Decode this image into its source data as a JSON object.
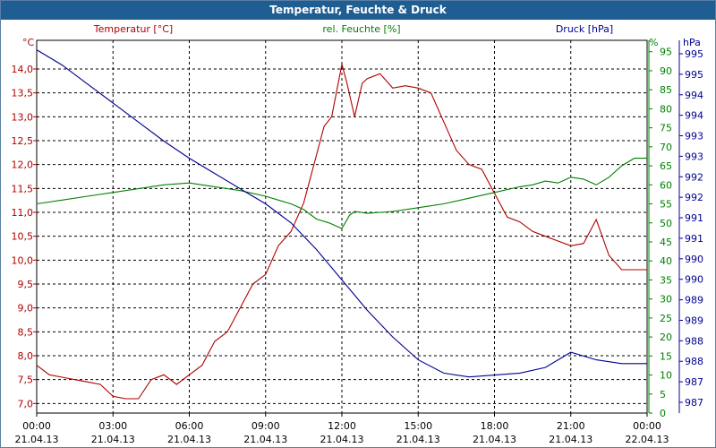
{
  "window": {
    "title": "Temperatur, Feuchte & Druck"
  },
  "chart_data": {
    "type": "line",
    "title": "Temperatur, Feuchte & Druck",
    "grid": true,
    "x_ticks": [
      {
        "time": "00:00",
        "date": "21.04.13"
      },
      {
        "time": "03:00",
        "date": "21.04.13"
      },
      {
        "time": "06:00",
        "date": "21.04.13"
      },
      {
        "time": "09:00",
        "date": "21.04.13"
      },
      {
        "time": "12:00",
        "date": "21.04.13"
      },
      {
        "time": "15:00",
        "date": "21.04.13"
      },
      {
        "time": "18:00",
        "date": "21.04.13"
      },
      {
        "time": "21:00",
        "date": "21.04.13"
      },
      {
        "time": "00:00",
        "date": "22.04.13"
      }
    ],
    "xlim": [
      0,
      24
    ],
    "axes": {
      "temperature": {
        "label": "Temperatur [°C]",
        "unit": "°C",
        "color": "#b00000",
        "ylim": [
          6.8,
          14.6
        ],
        "ticks": [
          "7,0",
          "7,5",
          "8,0",
          "8,5",
          "9,0",
          "9,5",
          "10,0",
          "10,5",
          "11,0",
          "11,5",
          "12,0",
          "12,5",
          "13,0",
          "13,5",
          "14,0"
        ]
      },
      "humidity": {
        "label": "rel. Feuchte [%]",
        "unit": "%",
        "color": "#008000",
        "ylim": [
          0,
          98
        ],
        "ticks": [
          "0",
          "5",
          "10",
          "15",
          "20",
          "25",
          "30",
          "35",
          "40",
          "45",
          "50",
          "55",
          "60",
          "65",
          "70",
          "75",
          "80",
          "85",
          "90",
          "95"
        ]
      },
      "pressure": {
        "label": "Druck [hPa]",
        "unit": "hPa",
        "color": "#000090",
        "ticks": [
          "987",
          "987",
          "988",
          "988",
          "989",
          "989",
          "990",
          "990",
          "991",
          "991",
          "992",
          "992",
          "993",
          "993",
          "994",
          "994",
          "995",
          "995"
        ]
      }
    },
    "series": [
      {
        "name": "Temperatur [°C]",
        "axis": "temperature",
        "color": "#b00000",
        "x": [
          0,
          0.5,
          1,
          1.5,
          2,
          2.5,
          3,
          3.5,
          4,
          4.5,
          5,
          5.5,
          6,
          6.5,
          7,
          7.5,
          8,
          8.5,
          9,
          9.5,
          10,
          10.5,
          11,
          11.3,
          11.6,
          12,
          12.2,
          12.5,
          12.8,
          13,
          13.5,
          14,
          14.5,
          15,
          15.5,
          16,
          16.5,
          17,
          17.5,
          18,
          18.5,
          19,
          19.5,
          20,
          20.5,
          21,
          21.5,
          22,
          22.5,
          23,
          23.5,
          24
        ],
        "y": [
          7.8,
          7.6,
          7.55,
          7.5,
          7.45,
          7.4,
          7.15,
          7.1,
          7.1,
          7.5,
          7.6,
          7.4,
          7.6,
          7.8,
          8.3,
          8.5,
          9.0,
          9.5,
          9.7,
          10.3,
          10.6,
          11.2,
          12.2,
          12.8,
          13.0,
          14.1,
          13.7,
          13.0,
          13.7,
          13.8,
          13.9,
          13.6,
          13.65,
          13.6,
          13.5,
          12.9,
          12.3,
          12.0,
          11.9,
          11.4,
          10.9,
          10.8,
          10.6,
          10.5,
          10.4,
          10.3,
          10.35,
          10.85,
          10.1,
          9.8,
          9.8,
          9.8
        ]
      },
      {
        "name": "rel. Feuchte [%]",
        "axis": "humidity",
        "color": "#008000",
        "x": [
          0,
          1,
          2,
          3,
          4,
          5,
          6,
          7,
          8,
          9,
          9.5,
          10,
          10.5,
          11,
          11.5,
          12,
          12.3,
          12.5,
          13,
          14,
          15,
          16,
          17,
          18,
          19,
          19.5,
          20,
          20.5,
          21,
          21.5,
          22,
          22.5,
          23,
          23.5,
          24
        ],
        "y": [
          55,
          56,
          57,
          58,
          59,
          60,
          60.5,
          59.5,
          58.5,
          57,
          56,
          55,
          53.5,
          51,
          50,
          48.5,
          52,
          53,
          52.5,
          53,
          54,
          55,
          56.5,
          58,
          59.5,
          60,
          61,
          60.5,
          62,
          61.5,
          60,
          62,
          65,
          67,
          67
        ]
      },
      {
        "name": "Druck [hPa]",
        "axis": "pressure",
        "color": "#000090",
        "x": [
          0,
          1,
          2,
          3,
          4,
          5,
          6,
          7,
          8,
          9,
          10,
          11,
          12,
          13,
          14,
          15,
          16,
          17,
          18,
          19,
          20,
          21,
          22,
          23,
          24
        ],
        "y": [
          95.5,
          91.5,
          86.5,
          81.5,
          76.5,
          71.5,
          67,
          63,
          59,
          55,
          50,
          43,
          35,
          27,
          20,
          14,
          10.5,
          9.5,
          10,
          10.5,
          12,
          16,
          14,
          13,
          13
        ]
      }
    ],
    "annotations": []
  }
}
